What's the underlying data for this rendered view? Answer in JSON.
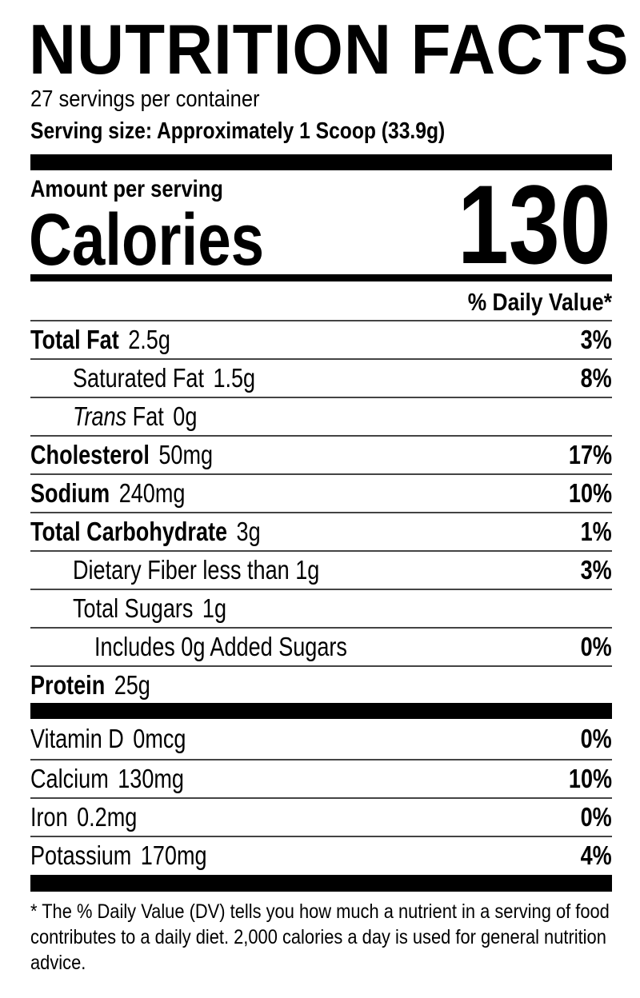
{
  "title": "NUTRITION FACTS",
  "servings_per_container": "27 servings per container",
  "serving_size": "Serving size: Approximately 1 Scoop (33.9g)",
  "amount_per_serving": "Amount per serving",
  "calories_label": "Calories",
  "calories_value": "130",
  "daily_value_header": "% Daily Value*",
  "nutrients": [
    {
      "name": "Total Fat",
      "amount": "2.5g",
      "dv": "3%",
      "bold": true,
      "indent": 0
    },
    {
      "name": "Saturated Fat",
      "amount": "1.5g",
      "dv": "8%",
      "bold": false,
      "indent": 1
    },
    {
      "name_italic": "Trans",
      "name": "Fat",
      "amount": "0g",
      "dv": "",
      "bold": false,
      "indent": 1
    },
    {
      "name": "Cholesterol",
      "amount": "50mg",
      "dv": "17%",
      "bold": true,
      "indent": 0
    },
    {
      "name": "Sodium",
      "amount": "240mg",
      "dv": "10%",
      "bold": true,
      "indent": 0
    },
    {
      "name": "Total Carbohydrate",
      "amount": "3g",
      "dv": "1%",
      "bold": true,
      "indent": 0
    },
    {
      "name": "Dietary Fiber less than 1g",
      "amount": "",
      "dv": "3%",
      "bold": false,
      "indent": 1
    },
    {
      "name": "Total Sugars",
      "amount": "1g",
      "dv": "",
      "bold": false,
      "indent": 1
    },
    {
      "name": "Includes 0g Added Sugars",
      "amount": "",
      "dv": "0%",
      "bold": false,
      "indent": 2
    },
    {
      "name": "Protein",
      "amount": "25g",
      "dv": "",
      "bold": true,
      "indent": 0
    }
  ],
  "vitamins": [
    {
      "name": "Vitamin D",
      "amount": "0mcg",
      "dv": "0%"
    },
    {
      "name": "Calcium",
      "amount": "130mg",
      "dv": "10%"
    },
    {
      "name": "Iron",
      "amount": "0.2mg",
      "dv": "0%"
    },
    {
      "name": "Potassium",
      "amount": "170mg",
      "dv": "4%"
    }
  ],
  "footnote": "* The % Daily Value (DV) tells you how much a nutrient in a serving of food contributes to a daily diet. 2,000 calories a day is used for general nutrition advice."
}
